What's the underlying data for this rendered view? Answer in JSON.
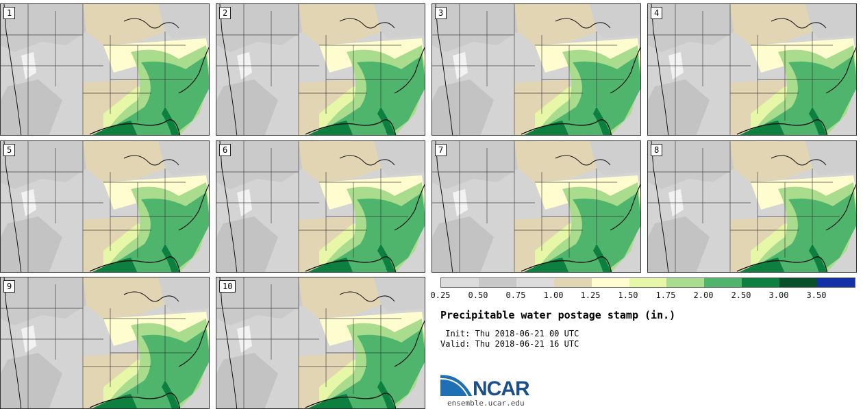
{
  "panels": [
    {
      "member": "1"
    },
    {
      "member": "2"
    },
    {
      "member": "3"
    },
    {
      "member": "4"
    },
    {
      "member": "5"
    },
    {
      "member": "6"
    },
    {
      "member": "7"
    },
    {
      "member": "8"
    },
    {
      "member": "9"
    },
    {
      "member": "10"
    }
  ],
  "legend": {
    "colors": [
      "#dcdcdc",
      "#c8c8c8",
      "#dcdcdc",
      "#e2d5b4",
      "#fffdd0",
      "#e6f7a8",
      "#a9dc8c",
      "#4fb56c",
      "#0d8040",
      "#07512a",
      "#1230a8"
    ],
    "ticks": [
      "0.25",
      "0.50",
      "0.75",
      "1.00",
      "1.25",
      "1.50",
      "1.75",
      "2.00",
      "2.50",
      "3.00",
      "3.50"
    ]
  },
  "title": "Precipitable water postage stamp (in.)",
  "init": " Init: Thu 2018-06-21 00 UTC",
  "valid": "Valid: Thu 2018-06-21 16 UTC",
  "logo": {
    "name": "NCAR",
    "url": "ensemble.ucar.edu"
  }
}
